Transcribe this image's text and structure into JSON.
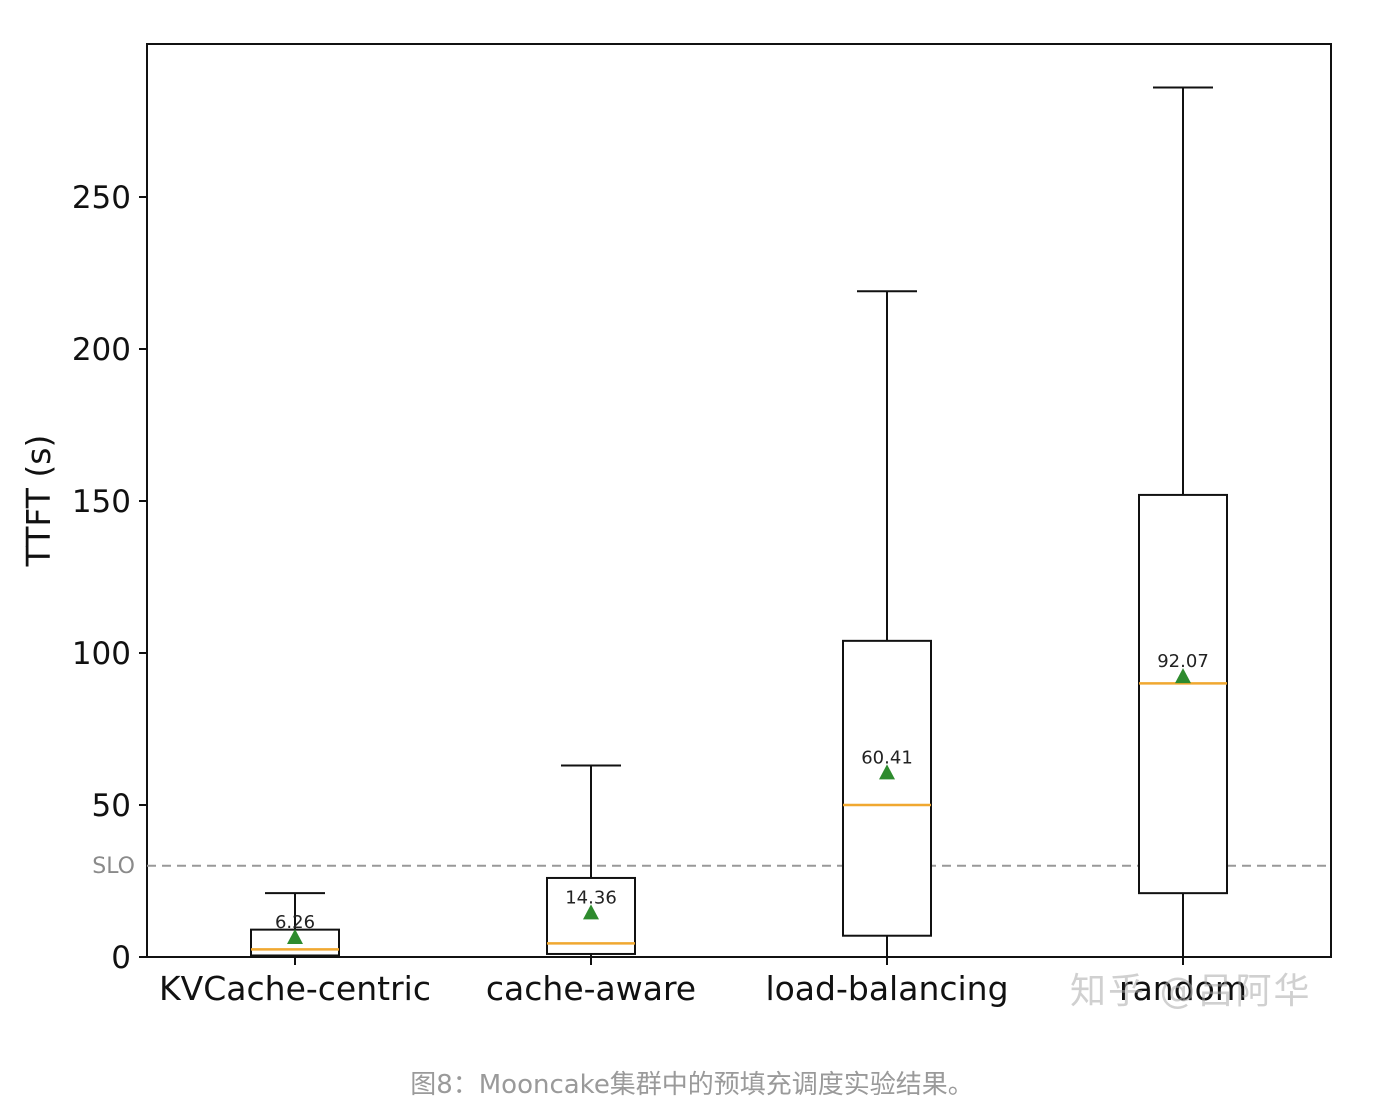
{
  "chart_data": {
    "type": "box",
    "ylabel": "TTFT (s)",
    "xlabel": "",
    "ylim": [
      0,
      300
    ],
    "yticks": [
      0,
      50,
      100,
      150,
      200,
      250
    ],
    "categories": [
      "KVCache-centric",
      "cache-aware",
      "load-balancing",
      "random"
    ],
    "boxes": [
      {
        "category": "KVCache-centric",
        "whisker_low": 0,
        "q1": 0.5,
        "median": 2.5,
        "q3": 9,
        "whisker_high": 21,
        "mean": 6.26,
        "mean_label": "6.26"
      },
      {
        "category": "cache-aware",
        "whisker_low": 0,
        "q1": 1,
        "median": 4.5,
        "q3": 26,
        "whisker_high": 63,
        "mean": 14.36,
        "mean_label": "14.36"
      },
      {
        "category": "load-balancing",
        "whisker_low": 0,
        "q1": 7,
        "median": 50,
        "q3": 104,
        "whisker_high": 219,
        "mean": 60.41,
        "mean_label": "60.41"
      },
      {
        "category": "random",
        "whisker_low": 0,
        "q1": 21,
        "median": 90,
        "q3": 152,
        "whisker_high": 286,
        "mean": 92.07,
        "mean_label": "92.07"
      }
    ],
    "slo": {
      "value": 30,
      "label": "SLO"
    },
    "grid": false,
    "colors": {
      "box": "#111111",
      "median": "#f0a830",
      "mean_marker": "#2e8b2e",
      "slo_line": "#999999"
    }
  },
  "watermark": "知乎 @吕阿华",
  "caption": "图8：Mooncake集群中的预填充调度实验结果。"
}
